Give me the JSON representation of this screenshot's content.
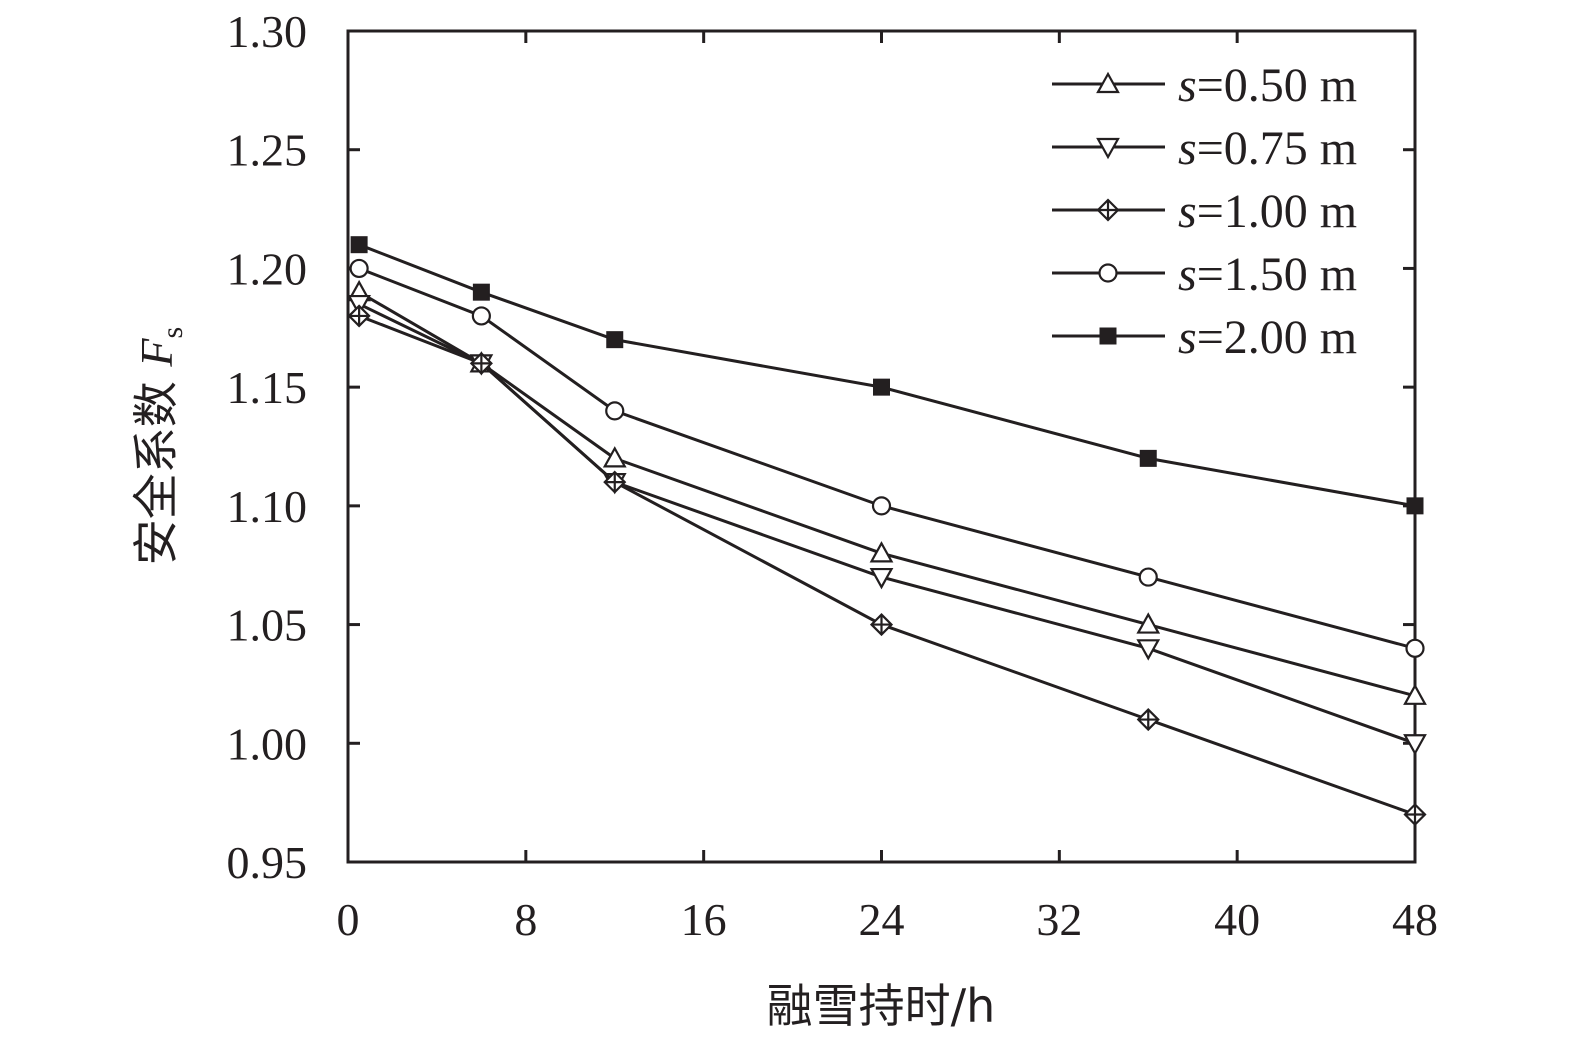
{
  "chart_data": {
    "type": "line",
    "xlabel": "融雪持时/h",
    "ylabel_text": "安全系数 ",
    "ylabel_var": "F",
    "ylabel_sub": "s",
    "xlim": [
      0,
      48
    ],
    "ylim": [
      0.95,
      1.3
    ],
    "x_ticks": [
      "0",
      "8",
      "16",
      "24",
      "32",
      "40",
      "48"
    ],
    "y_ticks": [
      "0.95",
      "1.00",
      "1.05",
      "1.10",
      "1.15",
      "1.20",
      "1.25",
      "1.30"
    ],
    "grid": false,
    "legend_position": "top-right",
    "series": [
      {
        "name": "s=0.50 m",
        "name_var": "s",
        "name_rest": "=0.50 m",
        "marker": "triangle-up-open",
        "x": [
          0.5,
          6,
          12,
          24,
          36,
          48
        ],
        "values": [
          1.19,
          1.16,
          1.12,
          1.08,
          1.05,
          1.02
        ]
      },
      {
        "name": "s=0.75 m",
        "name_var": "s",
        "name_rest": "=0.75 m",
        "marker": "triangle-down-open",
        "x": [
          0.5,
          6,
          12,
          24,
          36,
          48
        ],
        "values": [
          1.185,
          1.16,
          1.11,
          1.07,
          1.04,
          1.0
        ]
      },
      {
        "name": "s=1.00 m",
        "name_var": "s",
        "name_rest": "=1.00 m",
        "marker": "diamond-cross",
        "x": [
          0.5,
          6,
          12,
          24,
          36,
          48
        ],
        "values": [
          1.18,
          1.16,
          1.11,
          1.05,
          1.01,
          0.97
        ]
      },
      {
        "name": "s=1.50 m",
        "name_var": "s",
        "name_rest": "=1.50 m",
        "marker": "circle-open",
        "x": [
          0.5,
          6,
          12,
          24,
          36,
          48
        ],
        "values": [
          1.2,
          1.18,
          1.14,
          1.1,
          1.07,
          1.04
        ]
      },
      {
        "name": "s=2.00 m",
        "name_var": "s",
        "name_rest": "=2.00 m",
        "marker": "square-filled",
        "x": [
          0.5,
          6,
          12,
          24,
          36,
          48
        ],
        "values": [
          1.21,
          1.19,
          1.17,
          1.15,
          1.12,
          1.1
        ]
      }
    ],
    "colors": {
      "ink": "#231f20",
      "open_fill": "#ffffff"
    }
  }
}
